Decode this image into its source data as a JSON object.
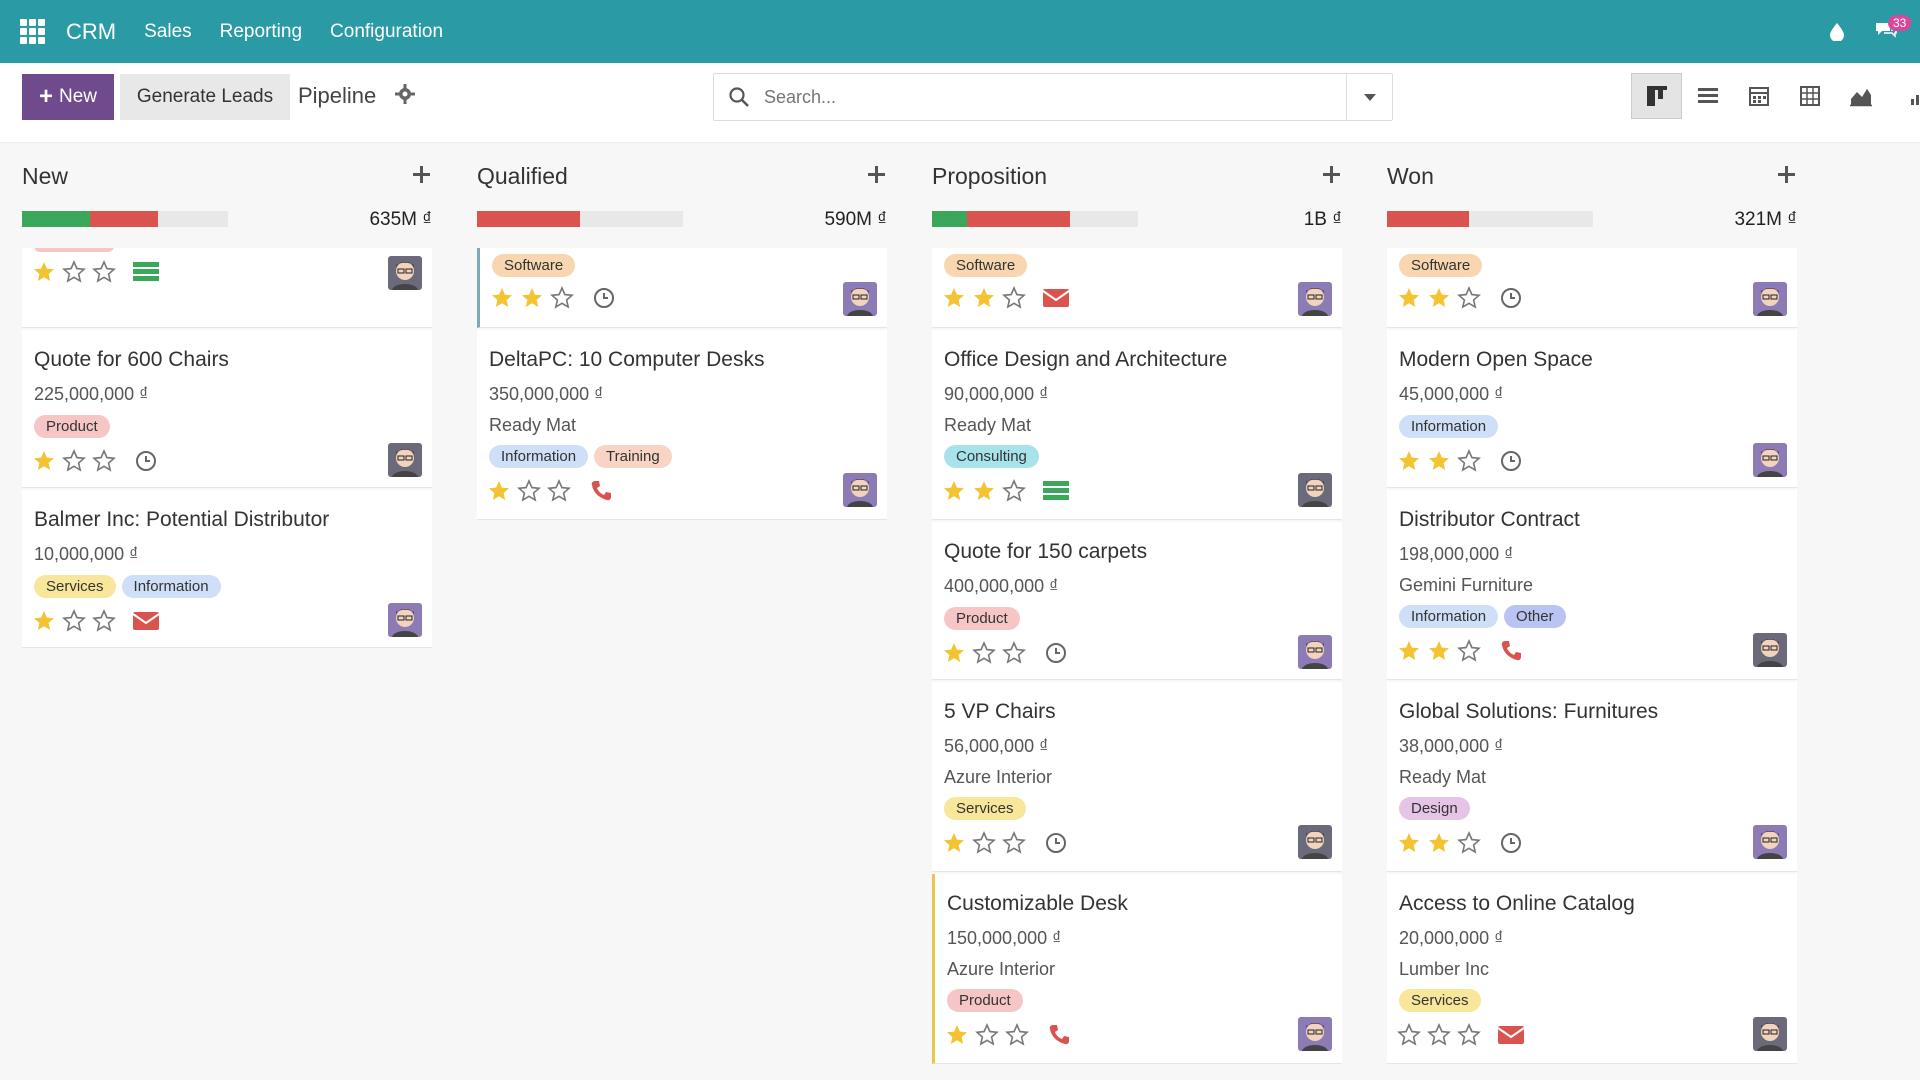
{
  "app": {
    "brand": "CRM",
    "menu": [
      "Sales",
      "Reporting",
      "Configuration"
    ],
    "message_count": "33"
  },
  "control": {
    "new_label": "New",
    "generate_label": "Generate Leads",
    "breadcrumb": "Pipeline",
    "search_placeholder": "Search..."
  },
  "views": [
    "kanban-icon",
    "list-icon",
    "calendar-icon",
    "pivot-icon",
    "graph-icon",
    "activity-icon"
  ],
  "colors": {
    "navbar": "#2a9aa4",
    "primary": "#6f4a8c",
    "progress_green": "#3aa75a",
    "progress_red": "#d9534f",
    "star": "#f3c332"
  },
  "columns": [
    {
      "title": "New",
      "total": "635M ₫",
      "progress": [
        {
          "color": "green",
          "fraction": 0.33
        },
        {
          "color": "red",
          "fraction": 0.33
        }
      ],
      "cards": [
        {
          "partial": true,
          "stars": 1,
          "activity": "list-icon",
          "tags": []
        },
        {
          "title": "Quote for 600 Chairs",
          "amount": "225,000,000 ₫",
          "partner": "",
          "tags": [
            {
              "label": "Product",
              "color": "#f6c6c6"
            }
          ],
          "stars": 1,
          "activity": "clock-icon"
        },
        {
          "title": "Balmer Inc: Potential Distributor",
          "amount": "10,000,000 ₫",
          "partner": "",
          "tags": [
            {
              "label": "Services",
              "color": "#f8e79a"
            },
            {
              "label": "Information",
              "color": "#cfdff7"
            }
          ],
          "stars": 1,
          "activity": "envelope-icon"
        }
      ]
    },
    {
      "title": "Qualified",
      "total": "590M ₫",
      "progress": [
        {
          "color": "red",
          "fraction": 0.5
        }
      ],
      "cards": [
        {
          "partial": true,
          "stars": 2,
          "activity": "clock-icon",
          "tags": [
            {
              "label": "Software",
              "color": "#f8d7b0"
            }
          ]
        },
        {
          "title": "DeltaPC: 10 Computer Desks",
          "amount": "350,000,000 ₫",
          "partner": "Ready Mat",
          "tags": [
            {
              "label": "Information",
              "color": "#cfdff7"
            },
            {
              "label": "Training",
              "color": "#f7d4c4"
            }
          ],
          "stars": 1,
          "activity": "phone-icon"
        }
      ]
    },
    {
      "title": "Proposition",
      "total": "1B ₫",
      "progress": [
        {
          "color": "green",
          "fraction": 0.17
        },
        {
          "color": "red",
          "fraction": 0.5
        }
      ],
      "cards": [
        {
          "partial": true,
          "stars": 2,
          "activity": "envelope-icon",
          "tags": [
            {
              "label": "Software",
              "color": "#f8d7b0"
            }
          ]
        },
        {
          "title": "Office Design and Architecture",
          "amount": "90,000,000 ₫",
          "partner": "Ready Mat",
          "tags": [
            {
              "label": "Consulting",
              "color": "#a8e3ec"
            }
          ],
          "stars": 2,
          "activity": "list-icon"
        },
        {
          "title": "Quote for 150 carpets",
          "amount": "400,000,000 ₫",
          "partner": "",
          "tags": [
            {
              "label": "Product",
              "color": "#f6c6c6"
            }
          ],
          "stars": 1,
          "activity": "clock-icon"
        },
        {
          "title": "5 VP Chairs",
          "amount": "56,000,000 ₫",
          "partner": "Azure Interior",
          "tags": [
            {
              "label": "Services",
              "color": "#f8e79a"
            }
          ],
          "stars": 1,
          "activity": "clock-icon"
        },
        {
          "title": "Customizable Desk",
          "amount": "150,000,000 ₫",
          "partner": "Azure Interior",
          "tags": [
            {
              "label": "Product",
              "color": "#f6c6c6"
            }
          ],
          "stars": 1,
          "activity": "phone-icon"
        }
      ]
    },
    {
      "title": "Won",
      "total": "321M ₫",
      "progress": [
        {
          "color": "red",
          "fraction": 0.4
        }
      ],
      "cards": [
        {
          "partial": true,
          "stars": 2,
          "activity": "clock-icon",
          "tags": [
            {
              "label": "Software",
              "color": "#f8d7b0"
            }
          ]
        },
        {
          "title": "Modern Open Space",
          "amount": "45,000,000 ₫",
          "partner": "",
          "tags": [
            {
              "label": "Information",
              "color": "#cfdff7"
            }
          ],
          "stars": 2,
          "activity": "clock-icon"
        },
        {
          "title": "Distributor Contract",
          "amount": "198,000,000 ₫",
          "partner": "Gemini Furniture",
          "tags": [
            {
              "label": "Information",
              "color": "#cfdff7"
            },
            {
              "label": "Other",
              "color": "#b9c4f2"
            }
          ],
          "stars": 2,
          "activity": "phone-icon"
        },
        {
          "title": "Global Solutions: Furnitures",
          "amount": "38,000,000 ₫",
          "partner": "Ready Mat",
          "tags": [
            {
              "label": "Design",
              "color": "#e5c4e8"
            }
          ],
          "stars": 2,
          "activity": "clock-icon"
        },
        {
          "title": "Access to Online Catalog",
          "amount": "20,000,000 ₫",
          "partner": "Lumber Inc",
          "tags": [
            {
              "label": "Services",
              "color": "#f8e79a"
            }
          ],
          "stars": 0,
          "activity": "envelope-icon"
        }
      ]
    }
  ]
}
